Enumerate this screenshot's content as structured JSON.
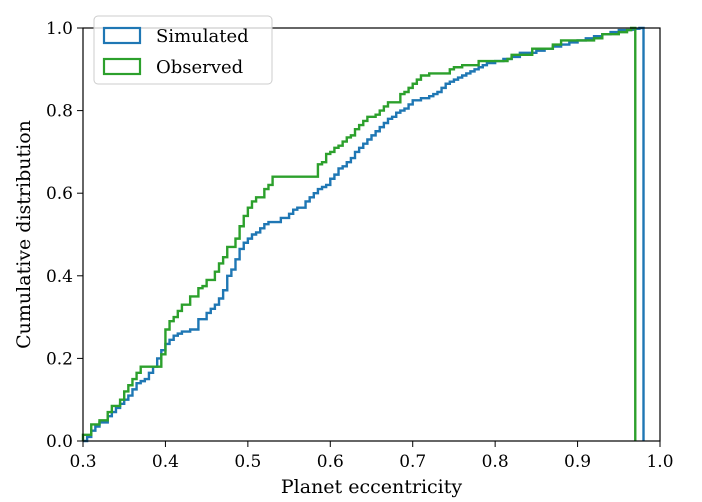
{
  "chart_data": {
    "type": "line",
    "style": "cumulative step histogram",
    "xlabel": "Planet eccentricity",
    "ylabel": "Cumulative distribution",
    "xlim": [
      0.3,
      1.0
    ],
    "ylim": [
      0.0,
      1.0
    ],
    "x_ticks": [
      "0.3",
      "0.4",
      "0.5",
      "0.6",
      "0.7",
      "0.8",
      "0.9",
      "1.0"
    ],
    "y_ticks": [
      "0.0",
      "0.2",
      "0.4",
      "0.6",
      "0.8",
      "1.0"
    ],
    "grid": false,
    "legend_position": "top-left",
    "series": [
      {
        "name": "Simulated",
        "color": "#1f77b4",
        "x": [
          0.3,
          0.305,
          0.31,
          0.315,
          0.32,
          0.33,
          0.335,
          0.34,
          0.345,
          0.35,
          0.355,
          0.36,
          0.365,
          0.37,
          0.375,
          0.38,
          0.385,
          0.39,
          0.395,
          0.4,
          0.405,
          0.41,
          0.415,
          0.42,
          0.43,
          0.44,
          0.45,
          0.455,
          0.46,
          0.465,
          0.47,
          0.475,
          0.48,
          0.485,
          0.49,
          0.495,
          0.5,
          0.505,
          0.51,
          0.515,
          0.52,
          0.525,
          0.53,
          0.54,
          0.55,
          0.555,
          0.56,
          0.57,
          0.575,
          0.58,
          0.585,
          0.59,
          0.595,
          0.6,
          0.605,
          0.61,
          0.615,
          0.62,
          0.625,
          0.63,
          0.635,
          0.64,
          0.645,
          0.65,
          0.655,
          0.66,
          0.665,
          0.67,
          0.675,
          0.68,
          0.685,
          0.69,
          0.695,
          0.7,
          0.71,
          0.72,
          0.725,
          0.73,
          0.735,
          0.74,
          0.745,
          0.75,
          0.755,
          0.76,
          0.765,
          0.77,
          0.775,
          0.78,
          0.785,
          0.79,
          0.8,
          0.81,
          0.82,
          0.83,
          0.84,
          0.85,
          0.86,
          0.87,
          0.88,
          0.89,
          0.9,
          0.91,
          0.92,
          0.93,
          0.94,
          0.95,
          0.96,
          0.965,
          0.97,
          0.975,
          0.98
        ],
        "y": [
          0.0,
          0.01,
          0.025,
          0.035,
          0.045,
          0.06,
          0.07,
          0.08,
          0.09,
          0.1,
          0.11,
          0.125,
          0.14,
          0.145,
          0.15,
          0.165,
          0.18,
          0.2,
          0.22,
          0.235,
          0.245,
          0.255,
          0.26,
          0.265,
          0.27,
          0.295,
          0.31,
          0.32,
          0.33,
          0.345,
          0.365,
          0.4,
          0.415,
          0.44,
          0.465,
          0.48,
          0.49,
          0.5,
          0.505,
          0.515,
          0.525,
          0.53,
          0.53,
          0.54,
          0.55,
          0.56,
          0.565,
          0.58,
          0.59,
          0.6,
          0.61,
          0.615,
          0.62,
          0.635,
          0.645,
          0.66,
          0.665,
          0.675,
          0.685,
          0.7,
          0.71,
          0.72,
          0.73,
          0.74,
          0.75,
          0.76,
          0.77,
          0.78,
          0.785,
          0.795,
          0.8,
          0.805,
          0.815,
          0.825,
          0.83,
          0.835,
          0.84,
          0.845,
          0.855,
          0.865,
          0.87,
          0.875,
          0.88,
          0.885,
          0.89,
          0.895,
          0.9,
          0.905,
          0.91,
          0.915,
          0.92,
          0.925,
          0.93,
          0.94,
          0.94,
          0.945,
          0.95,
          0.955,
          0.96,
          0.965,
          0.97,
          0.975,
          0.98,
          0.985,
          0.99,
          0.995,
          0.995,
          0.996,
          0.998,
          1.0,
          0.0
        ]
      },
      {
        "name": "Observed",
        "color": "#2ca02c",
        "x": [
          0.3,
          0.31,
          0.32,
          0.33,
          0.335,
          0.345,
          0.35,
          0.355,
          0.36,
          0.365,
          0.37,
          0.395,
          0.4,
          0.405,
          0.41,
          0.415,
          0.42,
          0.43,
          0.44,
          0.445,
          0.45,
          0.46,
          0.465,
          0.47,
          0.475,
          0.485,
          0.49,
          0.495,
          0.5,
          0.505,
          0.51,
          0.52,
          0.525,
          0.53,
          0.585,
          0.59,
          0.595,
          0.6,
          0.605,
          0.61,
          0.615,
          0.62,
          0.625,
          0.63,
          0.635,
          0.64,
          0.645,
          0.655,
          0.66,
          0.665,
          0.67,
          0.685,
          0.69,
          0.695,
          0.7,
          0.705,
          0.71,
          0.72,
          0.74,
          0.745,
          0.75,
          0.76,
          0.77,
          0.78,
          0.815,
          0.82,
          0.845,
          0.87,
          0.88,
          0.92,
          0.93,
          0.95,
          0.96,
          0.965,
          0.97
        ],
        "y": [
          0.015,
          0.04,
          0.05,
          0.07,
          0.085,
          0.1,
          0.12,
          0.135,
          0.15,
          0.165,
          0.18,
          0.21,
          0.27,
          0.29,
          0.3,
          0.315,
          0.33,
          0.35,
          0.37,
          0.375,
          0.39,
          0.41,
          0.43,
          0.445,
          0.47,
          0.49,
          0.52,
          0.545,
          0.565,
          0.58,
          0.59,
          0.61,
          0.62,
          0.64,
          0.67,
          0.675,
          0.695,
          0.7,
          0.71,
          0.715,
          0.725,
          0.735,
          0.74,
          0.755,
          0.765,
          0.775,
          0.785,
          0.79,
          0.8,
          0.81,
          0.82,
          0.84,
          0.845,
          0.855,
          0.865,
          0.875,
          0.885,
          0.89,
          0.89,
          0.9,
          0.905,
          0.91,
          0.91,
          0.92,
          0.925,
          0.935,
          0.95,
          0.96,
          0.97,
          0.975,
          0.985,
          0.99,
          0.995,
          1.0,
          0.0
        ]
      }
    ]
  }
}
